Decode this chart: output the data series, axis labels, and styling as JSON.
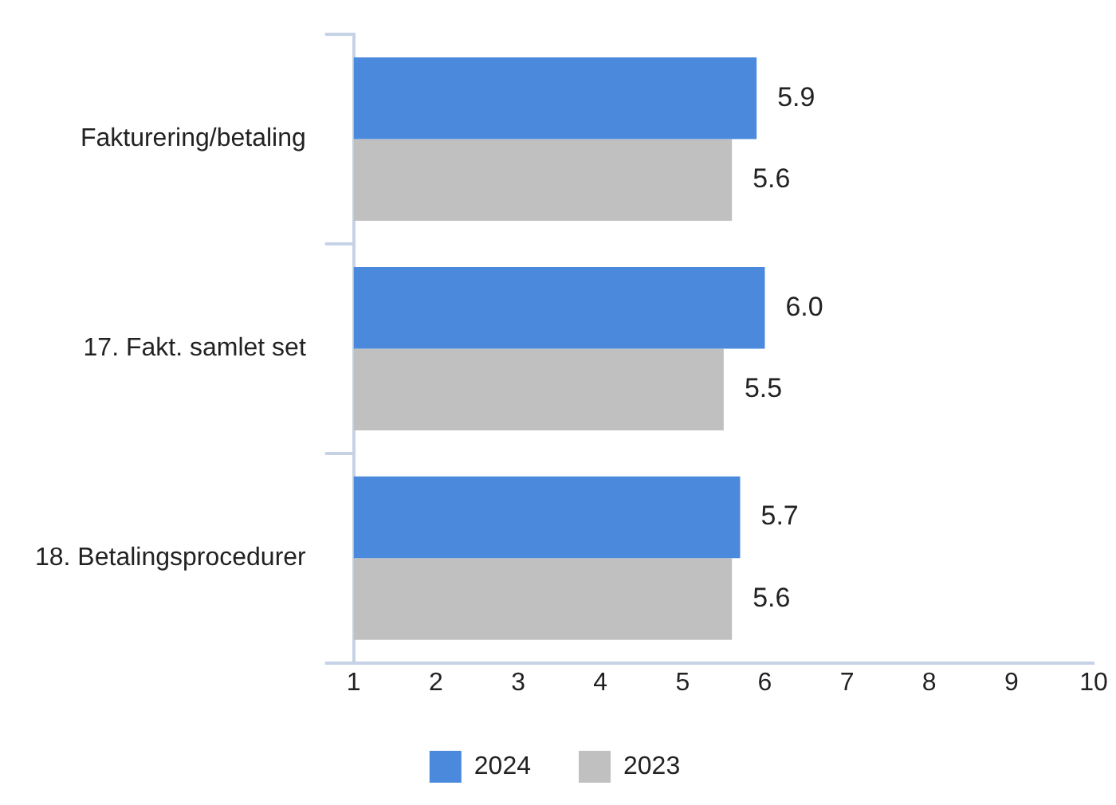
{
  "chart_data": {
    "type": "bar",
    "orientation": "horizontal",
    "categories": [
      "Fakturering/betaling",
      "17. Fakt. samlet set",
      "18. Betalingsprocedurer"
    ],
    "series": [
      {
        "name": "2024",
        "color": "#4a89dc",
        "values": [
          5.9,
          6.0,
          5.7
        ],
        "value_labels": [
          "5.9",
          "6.0",
          "5.7"
        ]
      },
      {
        "name": "2023",
        "color": "#c0c0c0",
        "values": [
          5.6,
          5.5,
          5.6
        ],
        "value_labels": [
          "5.6",
          "5.5",
          "5.6"
        ]
      }
    ],
    "xlim": [
      1,
      10
    ],
    "xticks": [
      1,
      2,
      3,
      4,
      5,
      6,
      7,
      8,
      9,
      10
    ],
    "legend": "bottom",
    "grid": false
  }
}
